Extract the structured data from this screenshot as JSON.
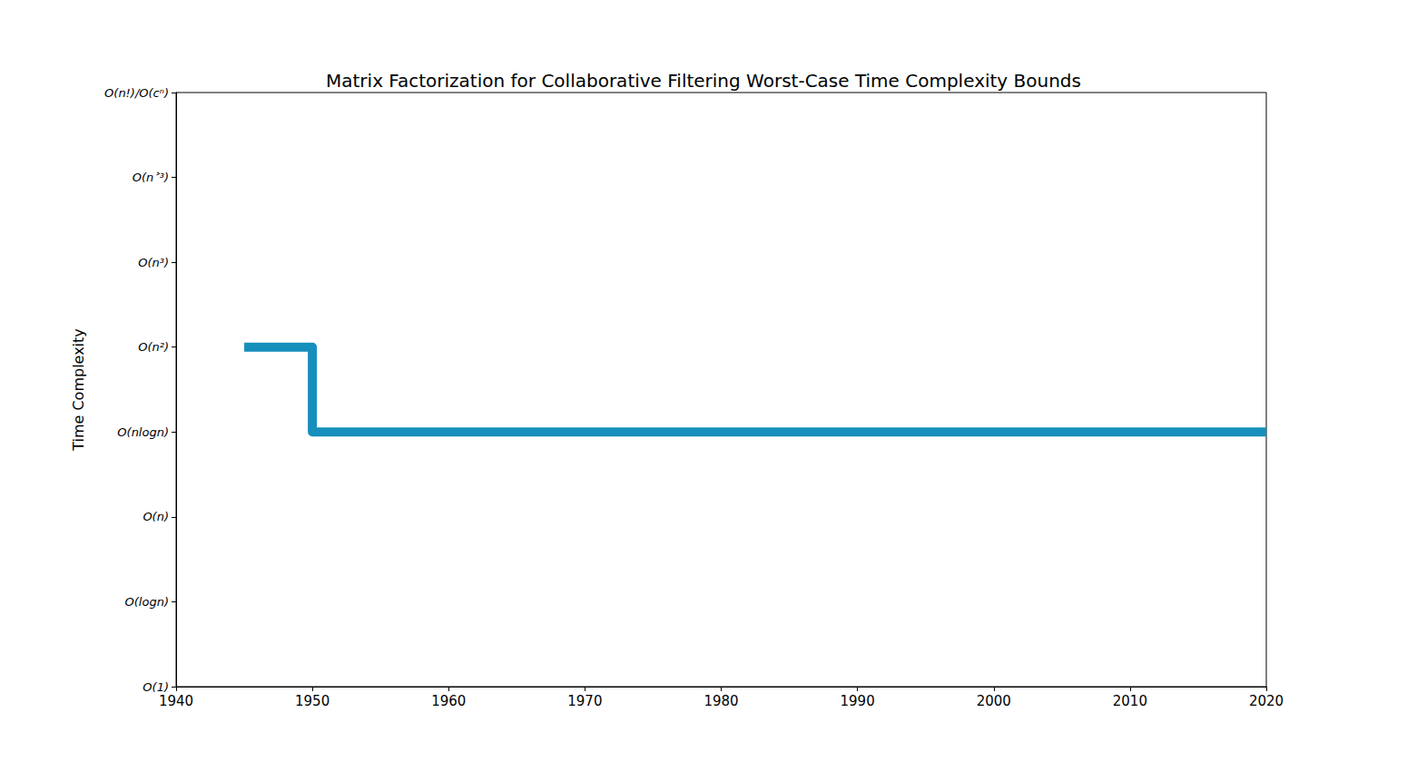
{
  "chart_data": {
    "type": "line",
    "title": "Matrix Factorization for Collaborative Filtering Worst-Case Time Complexity Bounds",
    "y_label": "Time Complexity",
    "x": [
      1945,
      1950,
      2020
    ],
    "values": [
      4,
      3,
      3
    ],
    "color": "#168fbc",
    "line_style": "step",
    "xlim": [
      1940,
      2020
    ],
    "xticks": [
      1940,
      1950,
      1960,
      1970,
      1980,
      1990,
      2000,
      2010,
      2020
    ],
    "ylim": [
      0,
      7
    ],
    "yticks": [
      {
        "value": 0,
        "label": "O(1)"
      },
      {
        "value": 1,
        "label": "O(logn)"
      },
      {
        "value": 2,
        "label": "O(n)"
      },
      {
        "value": 3,
        "label": "O(nlogn)"
      },
      {
        "value": 4,
        "label": "O(n²)"
      },
      {
        "value": 5,
        "label": "O(n³)"
      },
      {
        "value": 6,
        "label": "O(n˃³)"
      },
      {
        "value": 7,
        "label": "O(n!)/O(cⁿ)"
      }
    ],
    "grid": false
  }
}
